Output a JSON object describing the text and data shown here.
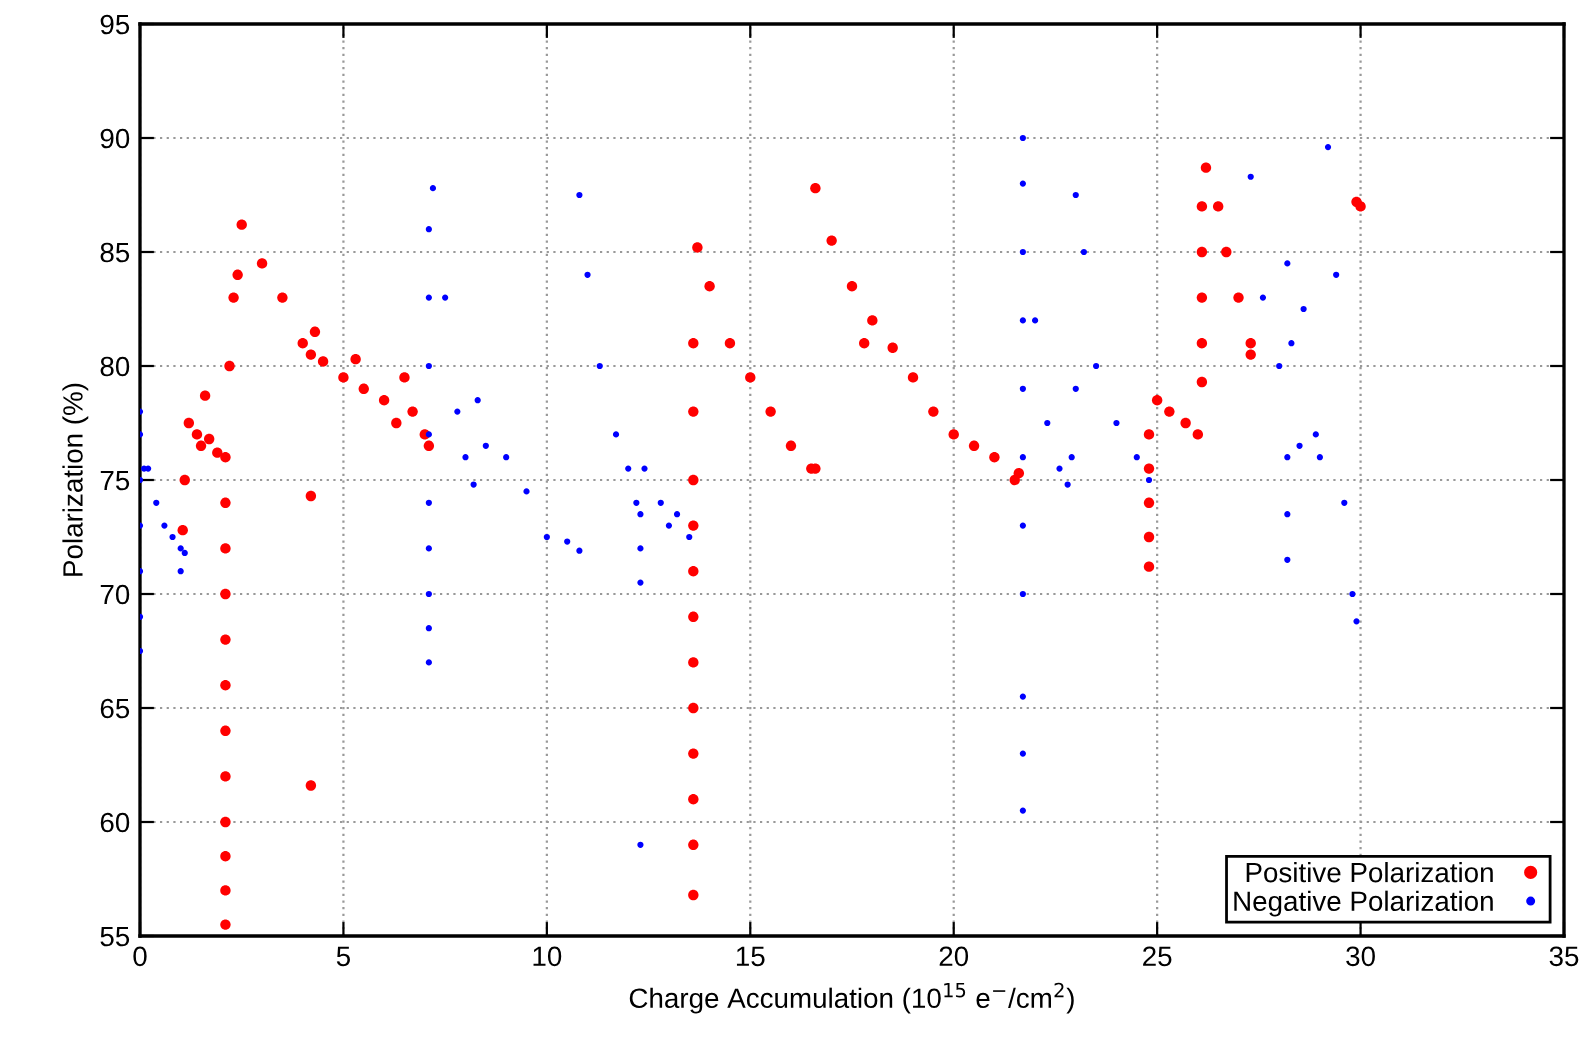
{
  "chart_data": {
    "type": "scatter",
    "xlabel": "Charge Accumulation (10$^{15}$ e$^{−}$/cm$^{2}$)",
    "ylabel": "Polarization (%)",
    "xlim": [
      0,
      35
    ],
    "xticks": [
      0,
      5,
      10,
      15,
      20,
      25,
      30,
      35
    ],
    "ylim": [
      55,
      95
    ],
    "yticks": [
      55,
      60,
      65,
      70,
      75,
      80,
      85,
      90,
      95
    ],
    "grid": true,
    "legend": "bottom right",
    "marker": "circle",
    "series": [
      {
        "name": "Positive Polarization",
        "color": "#ff0000",
        "x": [
          1.05,
          1.1,
          1.2,
          1.4,
          1.6,
          1.5,
          1.7,
          1.9,
          2.1,
          2.1,
          2.1,
          2.1,
          2.1,
          2.1,
          2.1,
          2.1,
          2.1,
          2.1,
          2.1,
          2.1,
          2.2,
          2.3,
          2.4,
          2.5,
          3.0,
          3.5,
          4.0,
          4.2,
          4.3,
          4.5,
          5.0,
          5.3,
          5.5,
          6.0,
          6.3,
          6.5,
          6.7,
          7.0,
          7.1,
          4.2,
          4.2,
          13.6,
          13.6,
          13.6,
          13.6,
          13.6,
          13.6,
          13.6,
          13.6,
          13.6,
          13.6,
          13.6,
          13.6,
          13.7,
          14.0,
          14.5,
          15.0,
          15.5,
          16.0,
          16.5,
          16.6,
          16.6,
          17.0,
          17.5,
          17.8,
          18.0,
          18.5,
          19.0,
          19.5,
          20.0,
          20.5,
          21.0,
          21.5,
          21.6,
          24.8,
          24.8,
          24.8,
          24.8,
          24.8,
          25.0,
          25.3,
          25.7,
          26.0,
          26.1,
          26.1,
          26.1,
          26.1,
          26.1,
          26.2,
          26.5,
          26.7,
          27.0,
          27.3,
          27.3,
          29.9,
          30.0
        ],
        "values": [
          72.8,
          75,
          77.5,
          77,
          78.7,
          76.5,
          76.8,
          76.2,
          55.5,
          57,
          58.5,
          60,
          62,
          64,
          66,
          68,
          70,
          72,
          74,
          76,
          80,
          83,
          84,
          86.2,
          84.5,
          83,
          81,
          80.5,
          81.5,
          80.2,
          79.5,
          80.3,
          79,
          78.5,
          77.5,
          79.5,
          78,
          77,
          76.5,
          74.3,
          61.6,
          56.8,
          59,
          61,
          63,
          65,
          67,
          69,
          71,
          73,
          75,
          78,
          81,
          85.2,
          83.5,
          81,
          79.5,
          78,
          76.5,
          75.5,
          75.5,
          87.8,
          85.5,
          83.5,
          81,
          82,
          80.8,
          79.5,
          78,
          77,
          76.5,
          76,
          75,
          75.3,
          71.2,
          72.5,
          74,
          75.5,
          77,
          78.5,
          78,
          77.5,
          77,
          79.3,
          81,
          83,
          85,
          87,
          88.7,
          87,
          85,
          83,
          81,
          80.5,
          87.2,
          87
        ]
      },
      {
        "name": "Negative Polarization",
        "color": "#0000ff",
        "x": [
          0,
          0,
          0,
          0,
          0,
          0,
          0,
          0.1,
          0.2,
          0.4,
          0.6,
          0.8,
          1.0,
          1.0,
          1.1,
          7.1,
          7.1,
          7.1,
          7.1,
          7.1,
          7.1,
          7.1,
          7.1,
          7.1,
          7.2,
          7.5,
          7.8,
          8.0,
          8.2,
          8.3,
          8.5,
          9.0,
          9.5,
          10.0,
          10.5,
          10.8,
          10.8,
          11.0,
          11.3,
          11.7,
          12.0,
          12.2,
          12.3,
          12.3,
          12.3,
          12.3,
          12.4,
          12.8,
          13.0,
          13.2,
          13.5,
          21.7,
          21.7,
          21.7,
          21.7,
          21.7,
          21.7,
          21.7,
          21.7,
          21.7,
          21.7,
          21.7,
          22.0,
          22.3,
          22.6,
          22.8,
          22.9,
          23.0,
          23.0,
          23.2,
          23.5,
          24.0,
          24.5,
          24.8,
          27.3,
          27.6,
          28.0,
          28.2,
          28.2,
          28.2,
          28.2,
          28.3,
          28.5,
          28.6,
          28.9,
          29.0,
          29.2,
          29.4,
          29.6,
          29.8,
          29.9
        ],
        "values": [
          67.5,
          69,
          71,
          73,
          75,
          77,
          78,
          75.5,
          75.5,
          74,
          73,
          72.5,
          72,
          71,
          71.8,
          67,
          68.5,
          70,
          72,
          74,
          77,
          80,
          83,
          86,
          87.8,
          83,
          78,
          76,
          74.8,
          78.5,
          76.5,
          76,
          74.5,
          72.5,
          72.3,
          71.9,
          87.5,
          84,
          80,
          77,
          75.5,
          74,
          73.5,
          72,
          70.5,
          59,
          75.5,
          74,
          73,
          73.5,
          72.5,
          60.5,
          63,
          65.5,
          70,
          73,
          76,
          79,
          82,
          85,
          88,
          90,
          82,
          77.5,
          75.5,
          74.8,
          76,
          79,
          87.5,
          85,
          80,
          77.5,
          76,
          75,
          88.3,
          83,
          80,
          84.5,
          76,
          73.5,
          71.5,
          81,
          76.5,
          82.5,
          77,
          76,
          89.6,
          84,
          74,
          70,
          68.8
        ]
      }
    ]
  }
}
